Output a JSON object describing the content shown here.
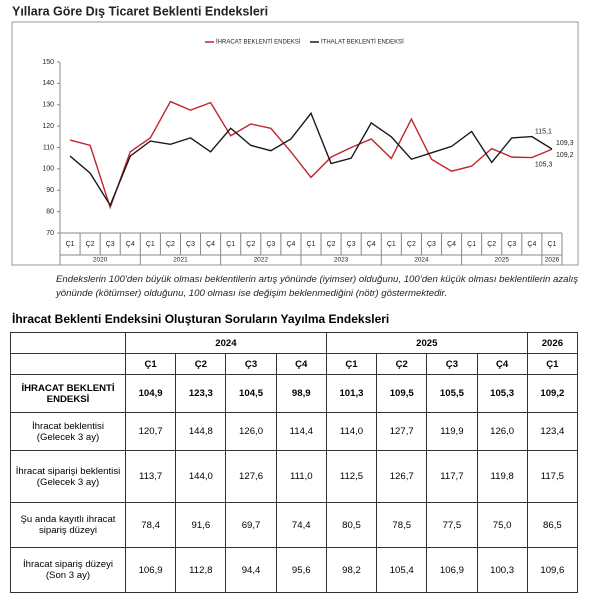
{
  "chart_data": {
    "type": "line",
    "title": "Yıllara Göre Dış Ticaret Beklenti Endeksleri",
    "categories": [
      "Ç1",
      "Ç2",
      "Ç3",
      "Ç4",
      "Ç1",
      "Ç2",
      "Ç3",
      "Ç4",
      "Ç1",
      "Ç2",
      "Ç3",
      "Ç4",
      "Ç1",
      "Ç2",
      "Ç3",
      "Ç4",
      "Ç1",
      "Ç2",
      "Ç3",
      "Ç4",
      "Ç1",
      "Ç2",
      "Ç3",
      "Ç4",
      "Ç1"
    ],
    "years": [
      "2020",
      "2021",
      "2022",
      "2023",
      "2024",
      "2025",
      "2026"
    ],
    "series": [
      {
        "name": "İHRACAT BEKLENTİ ENDEKSİ",
        "color": "#c0262d",
        "values": [
          113.5,
          111,
          82,
          108,
          114.5,
          131.5,
          127.5,
          131,
          115.5,
          121,
          119,
          108,
          96,
          105.5,
          110,
          114,
          104.9,
          123.3,
          104.5,
          98.9,
          101.3,
          109.5,
          105.5,
          105.3,
          109.2
        ],
        "value_labels": [
          null,
          null,
          null,
          null,
          null,
          null,
          null,
          null,
          null,
          null,
          null,
          null,
          null,
          null,
          null,
          null,
          null,
          null,
          null,
          null,
          null,
          null,
          null,
          "105,3",
          "109,2"
        ]
      },
      {
        "name": "İTHALAT BEKLENTİ ENDEKSİ",
        "color": "#1a1a1a",
        "values": [
          106,
          98,
          83,
          106,
          113,
          111.5,
          114.5,
          108,
          119,
          111,
          108.5,
          114,
          126,
          102.5,
          105,
          121.5,
          115,
          104.5,
          107.5,
          110.5,
          117.5,
          103,
          114.5,
          115.1,
          109.3
        ],
        "value_labels": [
          null,
          null,
          null,
          null,
          null,
          null,
          null,
          null,
          null,
          null,
          null,
          null,
          null,
          null,
          null,
          null,
          null,
          null,
          null,
          null,
          null,
          null,
          null,
          "115,1",
          "109,3"
        ]
      }
    ],
    "ylim": [
      70,
      150
    ],
    "yticks": [
      70,
      80,
      90,
      100,
      110,
      120,
      130,
      140,
      150
    ],
    "grid": false,
    "legend": "top"
  },
  "note": "Endekslerin 100’den büyük olması beklentilerin artış yönünde (iyimser) olduğunu, 100’den küçük olması beklentilerin azalış yönünde (kötümser) olduğunu, 100 olması ise değişim beklenmediğini (nötr) göstermektedir.",
  "table": {
    "title": "İhracat Beklenti Endeksini Oluşturan Soruların Yayılma Endeksleri",
    "year_header": [
      "2024",
      "2025",
      "2026"
    ],
    "quarter_header": [
      "Ç1",
      "Ç2",
      "Ç3",
      "Ç4",
      "Ç1",
      "Ç2",
      "Ç3",
      "Ç4",
      "Ç1"
    ],
    "rows": [
      {
        "label": "İHRACAT BEKLENTİ ENDEKSİ",
        "values": [
          "104,9",
          "123,3",
          "104,5",
          "98,9",
          "101,3",
          "109,5",
          "105,5",
          "105,3",
          "109,2"
        ]
      },
      {
        "label": "İhracat beklentisi (Gelecek 3 ay)",
        "values": [
          "120,7",
          "144,8",
          "126,0",
          "114,4",
          "114,0",
          "127,7",
          "119,9",
          "126,0",
          "123,4"
        ]
      },
      {
        "label": "İhracat siparişi beklentisi (Gelecek 3 ay)",
        "values": [
          "113,7",
          "144,0",
          "127,6",
          "111,0",
          "112,5",
          "126,7",
          "117,7",
          "119,8",
          "117,5"
        ]
      },
      {
        "label": "Şu anda kayıtlı ihracat sipariş düzeyi",
        "values": [
          "78,4",
          "91,6",
          "69,7",
          "74,4",
          "80,5",
          "78,5",
          "77,5",
          "75,0",
          "86,5"
        ]
      },
      {
        "label": "İhracat sipariş düzeyi (Son 3 ay)",
        "values": [
          "106,9",
          "112,8",
          "94,4",
          "95,6",
          "98,2",
          "105,4",
          "106,9",
          "100,3",
          "109,6"
        ]
      }
    ]
  }
}
